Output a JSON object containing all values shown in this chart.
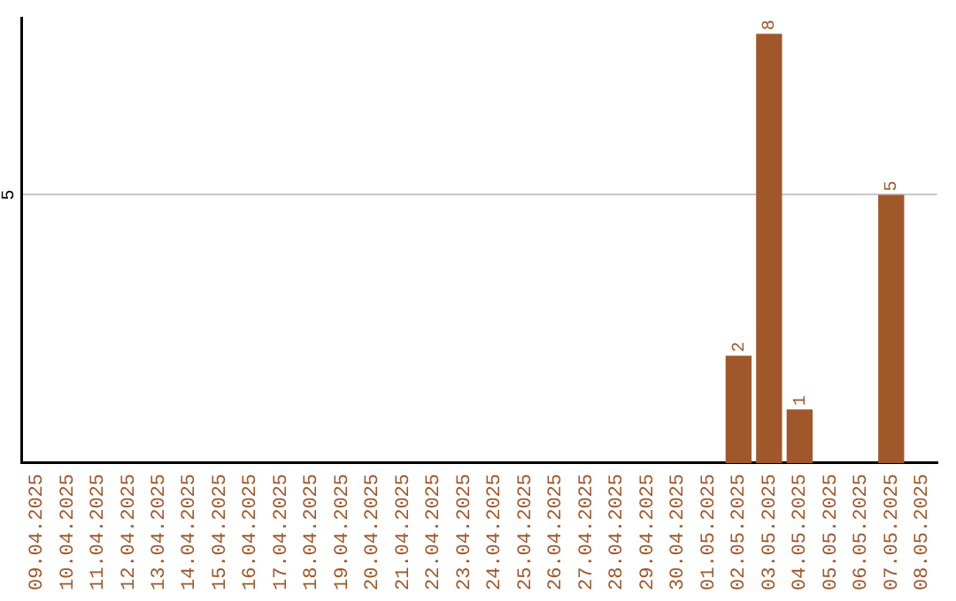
{
  "chart_data": {
    "type": "bar",
    "categories": [
      "09.04.2025",
      "10.04.2025",
      "11.04.2025",
      "12.04.2025",
      "13.04.2025",
      "14.04.2025",
      "15.04.2025",
      "16.04.2025",
      "17.04.2025",
      "18.04.2025",
      "19.04.2025",
      "20.04.2025",
      "21.04.2025",
      "22.04.2025",
      "23.04.2025",
      "24.04.2025",
      "25.04.2025",
      "26.04.2025",
      "27.04.2025",
      "28.04.2025",
      "29.04.2025",
      "30.04.2025",
      "01.05.2025",
      "02.05.2025",
      "03.05.2025",
      "04.05.2025",
      "05.05.2025",
      "06.05.2025",
      "07.05.2025",
      "08.05.2025"
    ],
    "values": [
      null,
      null,
      null,
      null,
      null,
      null,
      null,
      null,
      null,
      null,
      null,
      null,
      null,
      null,
      null,
      null,
      null,
      null,
      null,
      null,
      null,
      null,
      null,
      2,
      8,
      1,
      null,
      null,
      5,
      null
    ],
    "data_labels": true,
    "color": "#a0572a",
    "ylim": [
      0,
      8.3
    ],
    "yticks": [
      5
    ],
    "grid": "y",
    "legend": false
  }
}
